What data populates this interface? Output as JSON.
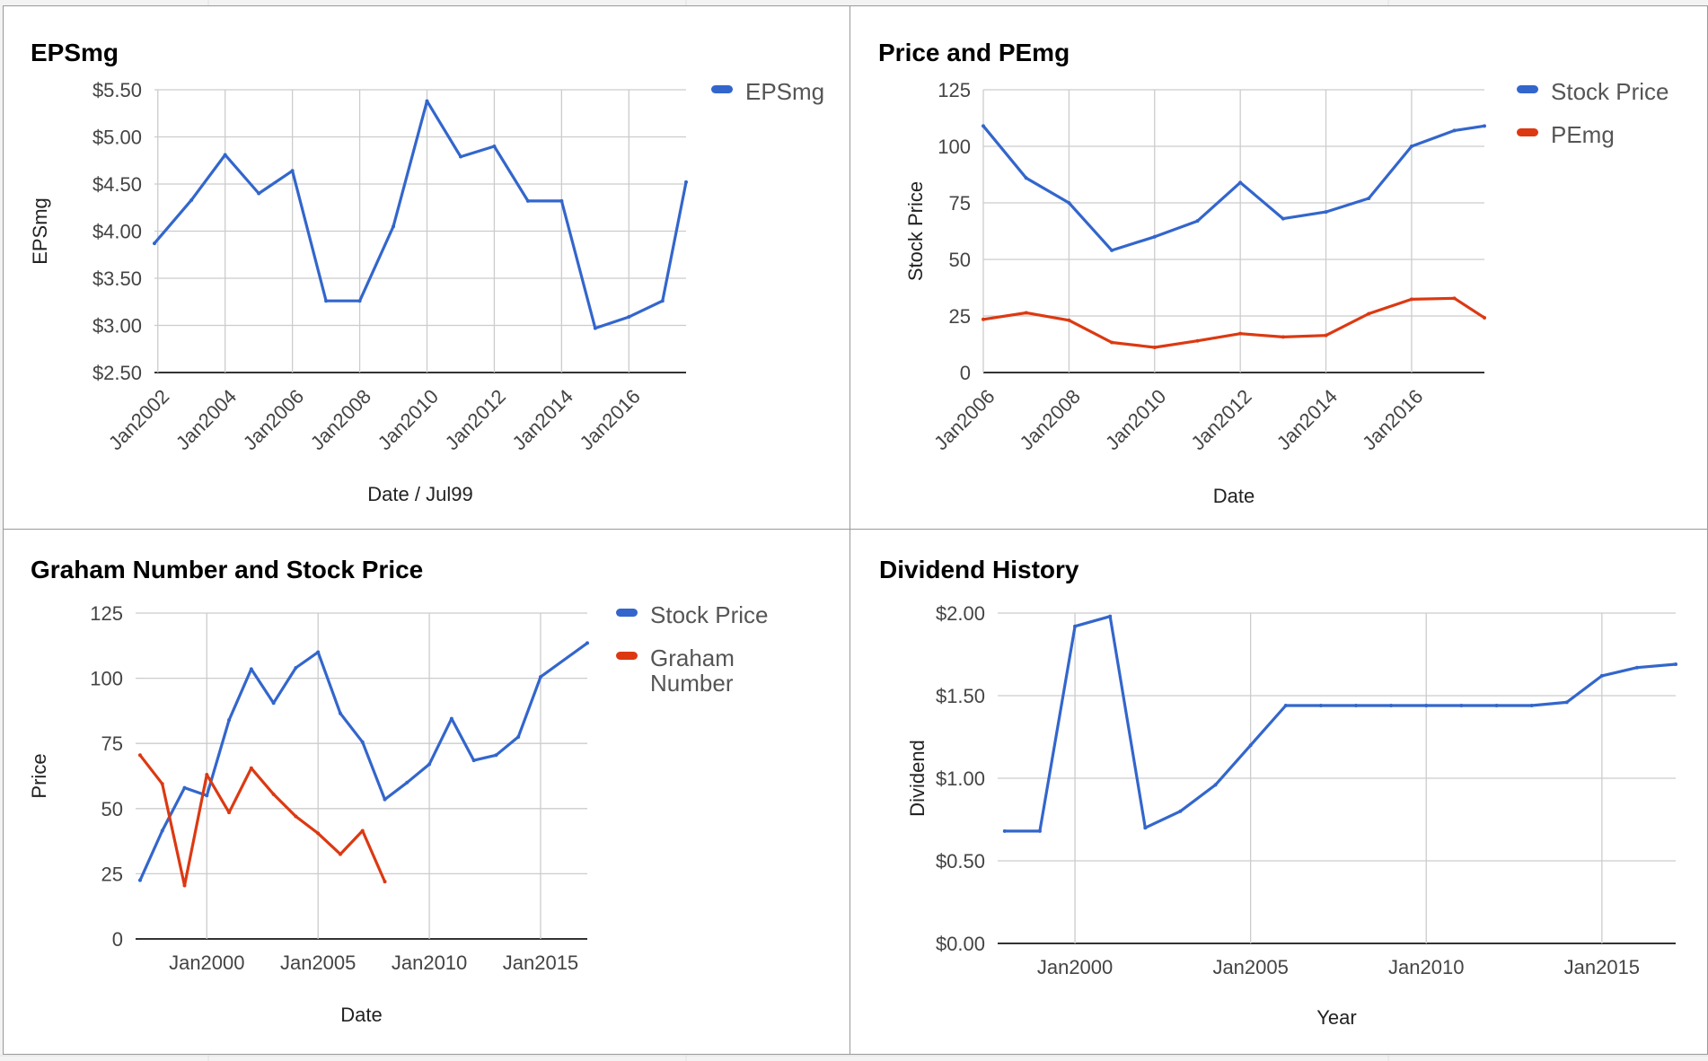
{
  "chart_data": [
    {
      "type": "line",
      "title": "EPSmg",
      "xlabel": "Date / Jul99",
      "ylabel": "EPSmg",
      "x_tick_labels": [
        "Jan2002",
        "Jan2004",
        "Jan2006",
        "Jan2008",
        "Jan2010",
        "Jan2012",
        "Jan2014",
        "Jan2016"
      ],
      "x_ticks": [
        2002,
        2004,
        2006,
        2008,
        2010,
        2012,
        2014,
        2016
      ],
      "xlim": [
        2001.9,
        2017.7
      ],
      "y_ticks": [
        2.5,
        3.0,
        3.5,
        4.0,
        4.5,
        5.0,
        5.5
      ],
      "y_tick_labels": [
        "$2.50",
        "$3.00",
        "$3.50",
        "$4.00",
        "$4.50",
        "$5.00",
        "$5.50"
      ],
      "ylim": [
        2.5,
        5.5
      ],
      "grid": true,
      "legend_position": "right",
      "series": [
        {
          "name": "EPSmg",
          "color": "#3366cc",
          "x": [
            2001.9,
            2003,
            2004,
            2005,
            2006,
            2007,
            2008,
            2009,
            2010,
            2011,
            2012,
            2013,
            2014,
            2015,
            2016,
            2017,
            2017.7
          ],
          "values": [
            3.87,
            4.33,
            4.81,
            4.4,
            4.64,
            3.26,
            3.26,
            4.05,
            5.38,
            4.79,
            4.9,
            4.32,
            4.32,
            2.97,
            3.09,
            3.26,
            4.52
          ]
        }
      ]
    },
    {
      "type": "line",
      "title": "Price and PEmg",
      "xlabel": "Date",
      "ylabel": "Stock Price",
      "x_tick_labels": [
        "Jan2006",
        "Jan2008",
        "Jan2010",
        "Jan2012",
        "Jan2014",
        "Jan2016"
      ],
      "x_ticks": [
        2006,
        2008,
        2010,
        2012,
        2014,
        2016
      ],
      "xlim": [
        2006,
        2017.7
      ],
      "y_ticks": [
        0,
        25,
        50,
        75,
        100,
        125
      ],
      "y_tick_labels": [
        "0",
        "25",
        "50",
        "75",
        "100",
        "125"
      ],
      "ylim": [
        0,
        125
      ],
      "grid": true,
      "legend_position": "right",
      "series": [
        {
          "name": "Stock Price",
          "color": "#3366cc",
          "x": [
            2006,
            2007,
            2008,
            2009,
            2010,
            2011,
            2012,
            2013,
            2014,
            2015,
            2016,
            2017,
            2017.7
          ],
          "values": [
            109,
            86,
            75,
            54,
            60,
            67,
            84,
            68,
            71,
            77,
            100,
            107,
            109
          ]
        },
        {
          "name": "PEmg",
          "color": "#dc3912",
          "x": [
            2006,
            2007,
            2008,
            2009,
            2010,
            2011,
            2012,
            2013,
            2014,
            2015,
            2016,
            2017,
            2017.7
          ],
          "values": [
            23.5,
            26.4,
            23.1,
            13.3,
            11.1,
            14,
            17.2,
            15.7,
            16.4,
            26,
            32.4,
            32.8,
            24.2
          ]
        }
      ]
    },
    {
      "type": "line",
      "title": "Graham Number and Stock Price",
      "xlabel": "Date",
      "ylabel": "Price",
      "x_tick_labels": [
        "Jan2000",
        "Jan2005",
        "Jan2010",
        "Jan2015"
      ],
      "x_ticks": [
        2000,
        2005,
        2010,
        2015
      ],
      "xlim": [
        1996.8,
        2017.1
      ],
      "y_ticks": [
        0,
        25,
        50,
        75,
        100,
        125
      ],
      "y_tick_labels": [
        "0",
        "25",
        "50",
        "75",
        "100",
        "125"
      ],
      "ylim": [
        0,
        125
      ],
      "grid": true,
      "legend_position": "right",
      "series": [
        {
          "name": "Stock Price",
          "color": "#3366cc",
          "x": [
            1997,
            1998,
            1999,
            2000,
            2001,
            2002,
            2003,
            2004,
            2005,
            2006,
            2007,
            2008,
            2009,
            2010,
            2011,
            2012,
            2013,
            2014,
            2015,
            2017.1
          ],
          "values": [
            22.5,
            41.5,
            58,
            55,
            84,
            103.5,
            90.5,
            104,
            110,
            86.5,
            75.5,
            53.5,
            60,
            67,
            84.5,
            68.5,
            70.5,
            77.5,
            100.5,
            113.5
          ]
        },
        {
          "name": "Graham Number",
          "color": "#dc3912",
          "x": [
            1997,
            1998,
            1999,
            2000,
            2001,
            2002,
            2003,
            2004,
            2005,
            2006,
            2007,
            2008
          ],
          "values": [
            70.5,
            59.5,
            20.5,
            63,
            48.5,
            65.5,
            55.5,
            47,
            40.5,
            32.5,
            41.5,
            22
          ]
        }
      ]
    },
    {
      "type": "line",
      "title": "Dividend History",
      "xlabel": "Year",
      "ylabel": "Dividend",
      "x_tick_labels": [
        "Jan2000",
        "Jan2005",
        "Jan2010",
        "Jan2015"
      ],
      "x_ticks": [
        2000,
        2005,
        2010,
        2015
      ],
      "xlim": [
        1997.8,
        2017.1
      ],
      "y_ticks": [
        0,
        0.5,
        1.0,
        1.5,
        2.0
      ],
      "y_tick_labels": [
        "$0.00",
        "$0.50",
        "$1.00",
        "$1.50",
        "$2.00"
      ],
      "ylim": [
        0,
        2
      ],
      "grid": true,
      "legend_position": "none",
      "series": [
        {
          "color": "#3366cc",
          "x": [
            1998,
            1999,
            2000,
            2001,
            2002,
            2003,
            2004,
            2005,
            2006,
            2007,
            2008,
            2009,
            2010,
            2011,
            2012,
            2013,
            2014,
            2015,
            2016,
            2017.1
          ],
          "values": [
            0.68,
            0.68,
            1.92,
            1.98,
            0.7,
            0.8,
            0.96,
            1.2,
            1.44,
            1.44,
            1.44,
            1.44,
            1.44,
            1.44,
            1.44,
            1.44,
            1.46,
            1.62,
            1.67,
            1.69
          ]
        }
      ]
    }
  ]
}
